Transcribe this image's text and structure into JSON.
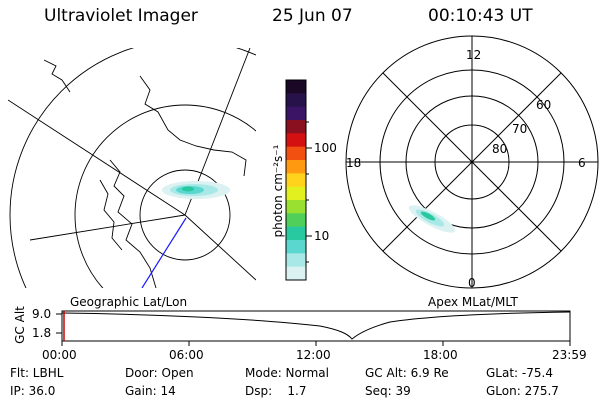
{
  "header": {
    "title": "Ultraviolet Imager",
    "date": "25 Jun 07",
    "time": "00:10:43 UT"
  },
  "colorbar": {
    "label": "photon cm⁻²s⁻¹",
    "ticks": [
      "100",
      "10"
    ],
    "colors": [
      "#1a0826",
      "#28124a",
      "#3c1466",
      "#8a1020",
      "#d41010",
      "#f25010",
      "#ff9a10",
      "#ffd21c",
      "#e2f020",
      "#9ae030",
      "#50d05a",
      "#28c8a0",
      "#5ad8d0",
      "#a8e8e6",
      "#dcf2f2"
    ]
  },
  "geo_map": {
    "caption": "Geographic Lat/Lon"
  },
  "polar_plot": {
    "caption": "Apex MLat/MLT",
    "mlt_labels": [
      "12",
      "18",
      "6",
      "0"
    ],
    "mlat_labels": [
      "60",
      "70",
      "80"
    ]
  },
  "altitude_plot": {
    "ylabel": "GC Alt",
    "y_ticks": [
      "9.0",
      "1.8"
    ],
    "x_ticks": [
      "00:00",
      "06:00",
      "12:00",
      "18:00",
      "23:59"
    ],
    "marker_color": "#cc0000"
  },
  "info": {
    "flt": "Flt: LBHL",
    "ip": "IP: 36.0",
    "door": "Door: Open",
    "gain": "Gain: 14",
    "mode": "Mode: Normal",
    "dsp": "Dsp:    1.7",
    "gc_alt": "GC Alt: 6.9 Re",
    "seq": "Seq: 39",
    "glat": "GLat: -75.4",
    "glon": "GLon: 275.7"
  }
}
